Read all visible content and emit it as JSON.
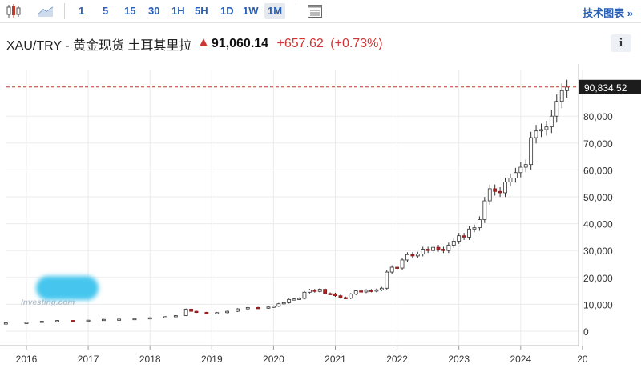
{
  "toolbar": {
    "chart_type_icons": [
      "candlestick-icon",
      "mountain-chart-icon"
    ],
    "intervals": [
      "1",
      "5",
      "15",
      "30",
      "1H",
      "5H",
      "1D",
      "1W",
      "1M"
    ],
    "active_interval": "1M",
    "settings_icon": "table-icon",
    "tech_chart_link": "技术图表 »"
  },
  "header": {
    "name": "XAU/TRY - 黄金现货 土耳其里拉",
    "price": "91,060.14",
    "change": "+657.62",
    "change_pct": "(+0.73%)",
    "info": "i"
  },
  "watermark": {
    "text": "Investing.com"
  },
  "colors": {
    "up": "#ffffff",
    "down": "#b22222",
    "ref_line": "#c0392b",
    "price_tag": "#1c1c1c",
    "accent": "#2a5fb3"
  },
  "chart_data": {
    "type": "candlestick",
    "x_range": [
      "2015-09",
      "2025-12"
    ],
    "ylim": [
      -5000,
      96000
    ],
    "y_ticks": [
      0,
      10000,
      20000,
      30000,
      40000,
      50000,
      60000,
      70000,
      80000
    ],
    "y_tick_labels": [
      "0",
      "10,000",
      "20,000",
      "30,000",
      "40,000",
      "50,000",
      "60,000",
      "70,000",
      "80,000"
    ],
    "x_ticks": [
      "2016",
      "2017",
      "2018",
      "2019",
      "2020",
      "2021",
      "2022",
      "2023",
      "2024",
      "20"
    ],
    "last_price_label": "90,834.52",
    "last_price": 90834.52,
    "grid": true,
    "series": [
      {
        "t": "2015-09",
        "c": 3100
      },
      {
        "t": "2016-01",
        "c": 3300
      },
      {
        "t": "2016-04",
        "c": 3700
      },
      {
        "t": "2016-07",
        "c": 4000
      },
      {
        "t": "2016-10",
        "c": 3900
      },
      {
        "t": "2017-01",
        "c": 4100
      },
      {
        "t": "2017-04",
        "c": 4400
      },
      {
        "t": "2017-07",
        "c": 4500
      },
      {
        "t": "2017-10",
        "c": 4700
      },
      {
        "t": "2018-01",
        "c": 5000
      },
      {
        "t": "2018-04",
        "c": 5400
      },
      {
        "t": "2018-06",
        "c": 5800
      },
      {
        "t": "2018-08",
        "c": 8200
      },
      {
        "t": "2018-09",
        "c": 7400
      },
      {
        "t": "2018-10",
        "c": 7000
      },
      {
        "t": "2018-12",
        "c": 6700
      },
      {
        "t": "2019-02",
        "c": 6900
      },
      {
        "t": "2019-04",
        "c": 7400
      },
      {
        "t": "2019-06",
        "c": 8300
      },
      {
        "t": "2019-08",
        "c": 8800
      },
      {
        "t": "2019-10",
        "c": 8600
      },
      {
        "t": "2019-12",
        "c": 9000
      },
      {
        "t": "2020-01",
        "c": 9300
      },
      {
        "t": "2020-02",
        "c": 10200
      },
      {
        "t": "2020-03",
        "c": 10600
      },
      {
        "t": "2020-04",
        "c": 11800
      },
      {
        "t": "2020-05",
        "c": 12000
      },
      {
        "t": "2020-06",
        "c": 12200
      },
      {
        "t": "2020-07",
        "c": 14500
      },
      {
        "t": "2020-08",
        "c": 15300
      },
      {
        "t": "2020-09",
        "c": 14800
      },
      {
        "t": "2020-10",
        "c": 15600
      },
      {
        "t": "2020-11",
        "c": 14000
      },
      {
        "t": "2020-12",
        "c": 13900
      },
      {
        "t": "2021-01",
        "c": 13200
      },
      {
        "t": "2021-02",
        "c": 12500
      },
      {
        "t": "2021-03",
        "c": 12300
      },
      {
        "t": "2021-04",
        "c": 13800
      },
      {
        "t": "2021-05",
        "c": 15000
      },
      {
        "t": "2021-06",
        "c": 14600
      },
      {
        "t": "2021-07",
        "c": 15200
      },
      {
        "t": "2021-08",
        "c": 14900
      },
      {
        "t": "2021-09",
        "c": 15400
      },
      {
        "t": "2021-10",
        "c": 16000
      },
      {
        "t": "2021-11",
        "c": 22000
      },
      {
        "t": "2021-12",
        "c": 23800
      },
      {
        "t": "2022-01",
        "c": 23500
      },
      {
        "t": "2022-02",
        "c": 26500
      },
      {
        "t": "2022-03",
        "c": 28500
      },
      {
        "t": "2022-04",
        "c": 28000
      },
      {
        "t": "2022-05",
        "c": 28700
      },
      {
        "t": "2022-06",
        "c": 30500
      },
      {
        "t": "2022-07",
        "c": 30000
      },
      {
        "t": "2022-08",
        "c": 31200
      },
      {
        "t": "2022-09",
        "c": 30500
      },
      {
        "t": "2022-10",
        "c": 30000
      },
      {
        "t": "2022-11",
        "c": 32000
      },
      {
        "t": "2022-12",
        "c": 33500
      },
      {
        "t": "2023-01",
        "c": 35500
      },
      {
        "t": "2023-02",
        "c": 35000
      },
      {
        "t": "2023-03",
        "c": 38000
      },
      {
        "t": "2023-04",
        "c": 38500
      },
      {
        "t": "2023-05",
        "c": 41500
      },
      {
        "t": "2023-06",
        "c": 48500
      },
      {
        "t": "2023-07",
        "c": 53000
      },
      {
        "t": "2023-08",
        "c": 52000
      },
      {
        "t": "2023-09",
        "c": 51500
      },
      {
        "t": "2023-10",
        "c": 55500
      },
      {
        "t": "2023-11",
        "c": 57000
      },
      {
        "t": "2023-12",
        "c": 59000
      },
      {
        "t": "2024-01",
        "c": 61000
      },
      {
        "t": "2024-02",
        "c": 62000
      },
      {
        "t": "2024-03",
        "c": 72000
      },
      {
        "t": "2024-04",
        "c": 74500
      },
      {
        "t": "2024-05",
        "c": 75000
      },
      {
        "t": "2024-06",
        "c": 76000
      },
      {
        "t": "2024-07",
        "c": 80000
      },
      {
        "t": "2024-08",
        "c": 85500
      },
      {
        "t": "2024-09",
        "c": 89500
      },
      {
        "t": "2024-10",
        "c": 90834.52
      }
    ]
  }
}
